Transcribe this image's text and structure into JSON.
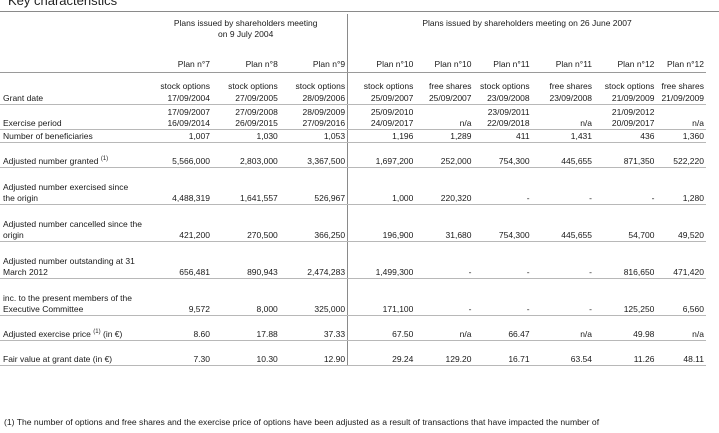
{
  "title": "Key characteristics",
  "group1_header": "Plans issued by shareholders meeting on 9 July 2004",
  "group2_header": "Plans issued by shareholders meeting on 26 June 2007",
  "plans": [
    "Plan n°7",
    "Plan n°8",
    "Plan n°9",
    "Plan n°10",
    "Plan n°10",
    "Plan n°11",
    "Plan n°11",
    "Plan n°12",
    "Plan n°12"
  ],
  "types": [
    "stock options",
    "stock options",
    "stock options",
    "stock options",
    "free shares",
    "stock options",
    "free shares",
    "stock options",
    "free shares"
  ],
  "rows": [
    {
      "label": "Grant date",
      "values": [
        "17/09/2004",
        "27/09/2005",
        "28/09/2006",
        "25/09/2007",
        "25/09/2007",
        "23/09/2008",
        "23/09/2008",
        "21/09/2009",
        "21/09/2009"
      ]
    },
    {
      "label": "Exercise period",
      "values": [
        "17/09/2007\n16/09/2014",
        "27/09/2008\n26/09/2015",
        "28/09/2009\n27/09/2016",
        "25/09/2010\n24/09/2017",
        "n/a",
        "23/09/2011\n22/09/2018",
        "n/a",
        "21/09/2012\n20/09/2017",
        "n/a"
      ]
    },
    {
      "label": "Number of beneficiaries",
      "values": [
        "1,007",
        "1,030",
        "1,053",
        "1,196",
        "1,289",
        "411",
        "1,431",
        "436",
        "1,360"
      ]
    },
    {
      "label": "Adjusted number granted",
      "sup": "(1)",
      "values": [
        "5,566,000",
        "2,803,000",
        "3,367,500",
        "1,697,200",
        "252,000",
        "754,300",
        "445,655",
        "871,350",
        "522,220"
      ]
    },
    {
      "label": "Adjusted number exercised since the origin",
      "values": [
        "4,488,319",
        "1,641,557",
        "526,967",
        "1,000",
        "220,320",
        "-",
        "-",
        "-",
        "1,280"
      ]
    },
    {
      "label": "Adjusted number cancelled since the origin",
      "values": [
        "421,200",
        "270,500",
        "366,250",
        "196,900",
        "31,680",
        "754,300",
        "445,655",
        "54,700",
        "49,520"
      ]
    },
    {
      "label": "Adjusted number outstanding at 31 March 2012",
      "values": [
        "656,481",
        "890,943",
        "2,474,283",
        "1,499,300",
        "-",
        "-",
        "-",
        "816,650",
        "471,420"
      ]
    },
    {
      "label": "inc. to the present members of the Executive Committee",
      "values": [
        "9,572",
        "8,000",
        "325,000",
        "171,100",
        "-",
        "-",
        "-",
        "125,250",
        "6,560"
      ]
    },
    {
      "label": "Adjusted exercise price",
      "sup": "(1)",
      "label_suffix": "(in €)",
      "values": [
        "8.60",
        "17.88",
        "37.33",
        "67.50",
        "n/a",
        "66.47",
        "n/a",
        "49.98",
        "n/a"
      ]
    },
    {
      "label": "Fair value at grant date (in €)",
      "values": [
        "7.30",
        "10.30",
        "12.90",
        "29.24",
        "129.20",
        "16.71",
        "63.54",
        "11.26",
        "48.11"
      ]
    }
  ],
  "footnote": "(1) The number of options and free shares and the exercise price of options have been adjusted as a result of transactions that have impacted the number of"
}
